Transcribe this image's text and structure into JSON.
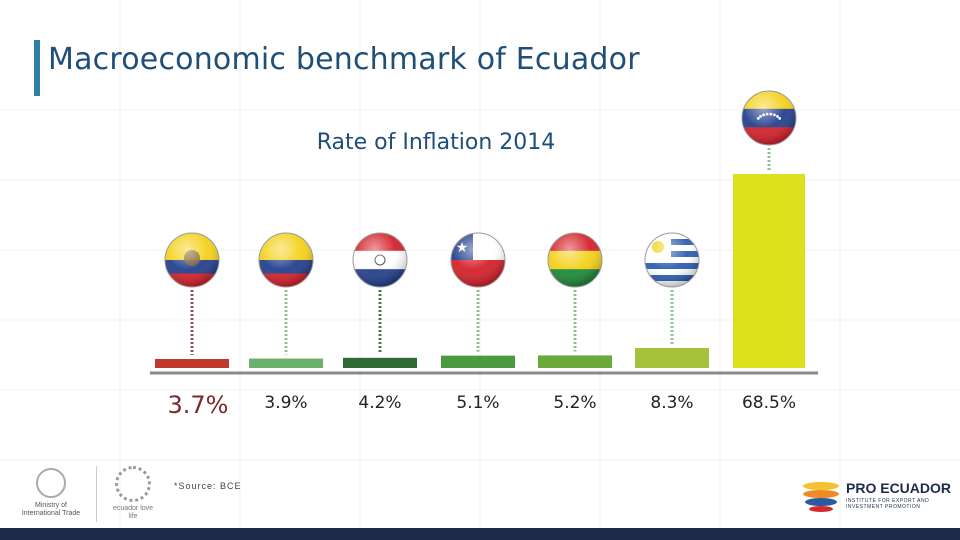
{
  "header": {
    "title": "Macroeconomic benchmark of Ecuador"
  },
  "chart_data": {
    "type": "bar",
    "title": "Rate of Inflation 2014",
    "categories": [
      "Ecuador",
      "Colombia",
      "Paraguay",
      "Chile",
      "Bolivia",
      "Uruguay",
      "Venezuela"
    ],
    "values": [
      3.7,
      3.9,
      4.2,
      5.1,
      5.2,
      8.3,
      68.5
    ],
    "value_labels": [
      "3.7%",
      "3.9%",
      "4.2%",
      "5.1%",
      "5.2%",
      "8.3%",
      "68.5%"
    ],
    "colors": [
      "#c0392b",
      "#6bb06b",
      "#2e6b34",
      "#4c9a3f",
      "#6aaa3a",
      "#a5c23a",
      "#dde01c"
    ],
    "ylim": [
      0,
      70
    ],
    "xlabel": "",
    "ylabel": "",
    "grid": false
  },
  "footer": {
    "source": "*Source: BCE",
    "left_logo": "Ministry of International Trade",
    "mid_logo": "ecuador love life",
    "right_logo": "PRO ECUADOR",
    "right_logo_sub": "INSTITUTE FOR EXPORT AND INVESTMENT PROMOTION"
  },
  "icons": [
    "flag-ecuador-icon",
    "flag-colombia-icon",
    "flag-paraguay-icon",
    "flag-chile-icon",
    "flag-bolivia-icon",
    "flag-uruguay-icon",
    "flag-venezuela-icon"
  ]
}
